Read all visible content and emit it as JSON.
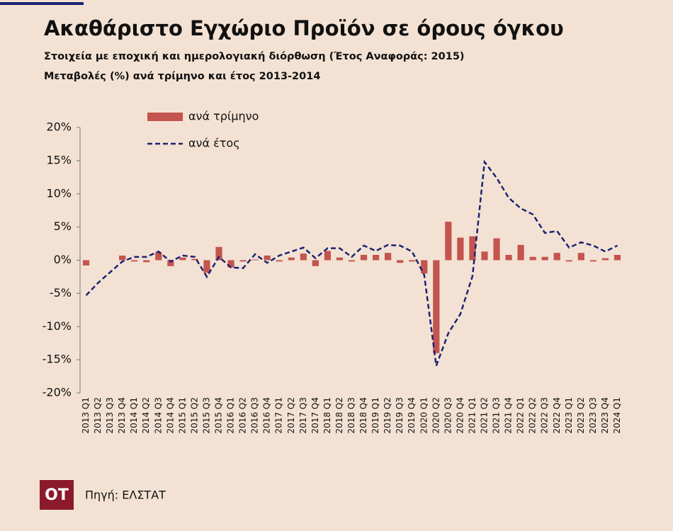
{
  "chart_data": {
    "type": "bar",
    "title": "Ακαθάριστο Εγχώριο Προϊόν σε όρους όγκου",
    "subtitles": [
      "Στοιχεία με εποχική και ημερολογιακή διόρθωση (Έτος Αναφοράς: 2015)",
      "Μεταβολές (%) ανά τρίμηνο  και έτος 2013-2014"
    ],
    "categories": [
      "2013 Q1",
      "2013 Q2",
      "2013 Q3",
      "2013 Q4",
      "2014 Q1",
      "2014 Q2",
      "2014 Q3",
      "2014 Q4",
      "2015 Q1",
      "2015 Q2",
      "2015 Q3",
      "2015 Q4",
      "2016 Q1",
      "2016 Q2",
      "2016 Q3",
      "2016 Q4",
      "2017 Q1",
      "2017 Q2",
      "2017 Q3",
      "2017 Q4",
      "2018 Q1",
      "2018 Q2",
      "2018 Q3",
      "2018 Q4",
      "2019 Q1",
      "2019 Q2",
      "2019 Q3",
      "2019 Q4",
      "2020 Q1",
      "2020 Q2",
      "2020 Q3",
      "2020 Q4",
      "2021 Q1",
      "2021 Q2",
      "2021 Q3",
      "2021 Q4",
      "2022 Q1",
      "2022 Q2",
      "2022 Q3",
      "2022 Q4",
      "2023 Q1",
      "2023 Q2",
      "2023 Q3",
      "2023 Q4",
      "2024 Q1"
    ],
    "series": [
      {
        "name": "ανά τρίμηνο",
        "type": "bar",
        "color": "#c4544e",
        "values": [
          -0.8,
          0,
          0,
          0.7,
          -0.2,
          -0.3,
          1.2,
          -0.9,
          0.4,
          0.2,
          -1.9,
          2.0,
          -1.1,
          -0.2,
          0.1,
          0.7,
          -0.2,
          0.4,
          1.0,
          -0.9,
          1.4,
          0.4,
          -0.2,
          0.8,
          0.8,
          1.1,
          -0.4,
          -0.2,
          -2.0,
          -14.0,
          5.8,
          3.4,
          3.6,
          1.3,
          3.3,
          0.8,
          2.3,
          0.5,
          0.5,
          1.1,
          -0.2,
          1.1,
          -0.2,
          0.3,
          0.8
        ]
      },
      {
        "name": "ανά έτος",
        "type": "line",
        "color": "#1c2373",
        "linestyle": "dashed",
        "values": [
          -5.3,
          -3.4,
          -1.8,
          -0.2,
          0.5,
          0.5,
          1.3,
          -0.2,
          0.7,
          0.5,
          -2.5,
          0.5,
          -1.1,
          -1.2,
          0.9,
          -0.4,
          0.7,
          1.3,
          1.9,
          0.3,
          1.8,
          1.8,
          0.5,
          2.2,
          1.4,
          2.3,
          2.2,
          1.3,
          -2.2,
          -15.9,
          -11.0,
          -8.1,
          -2.4,
          14.8,
          12.4,
          9.4,
          7.8,
          6.9,
          4.1,
          4.4,
          1.9,
          2.7,
          2.2,
          1.3,
          2.2
        ]
      }
    ],
    "ylim": [
      -20,
      20
    ],
    "yticks": [
      {
        "value": -20,
        "label": "-20%"
      },
      {
        "value": -15,
        "label": "-15%"
      },
      {
        "value": -10,
        "label": "-10%"
      },
      {
        "value": -5,
        "label": "-5%"
      },
      {
        "value": 0,
        "label": "0%"
      },
      {
        "value": 5,
        "label": "5%"
      },
      {
        "value": 10,
        "label": "10%"
      },
      {
        "value": 15,
        "label": "15%"
      },
      {
        "value": 20,
        "label": "20%"
      }
    ],
    "grid": false,
    "legend": "upper left"
  },
  "footer": {
    "logo": "OT",
    "source": "Πηγή: ΕΛΣΤΑΤ"
  }
}
